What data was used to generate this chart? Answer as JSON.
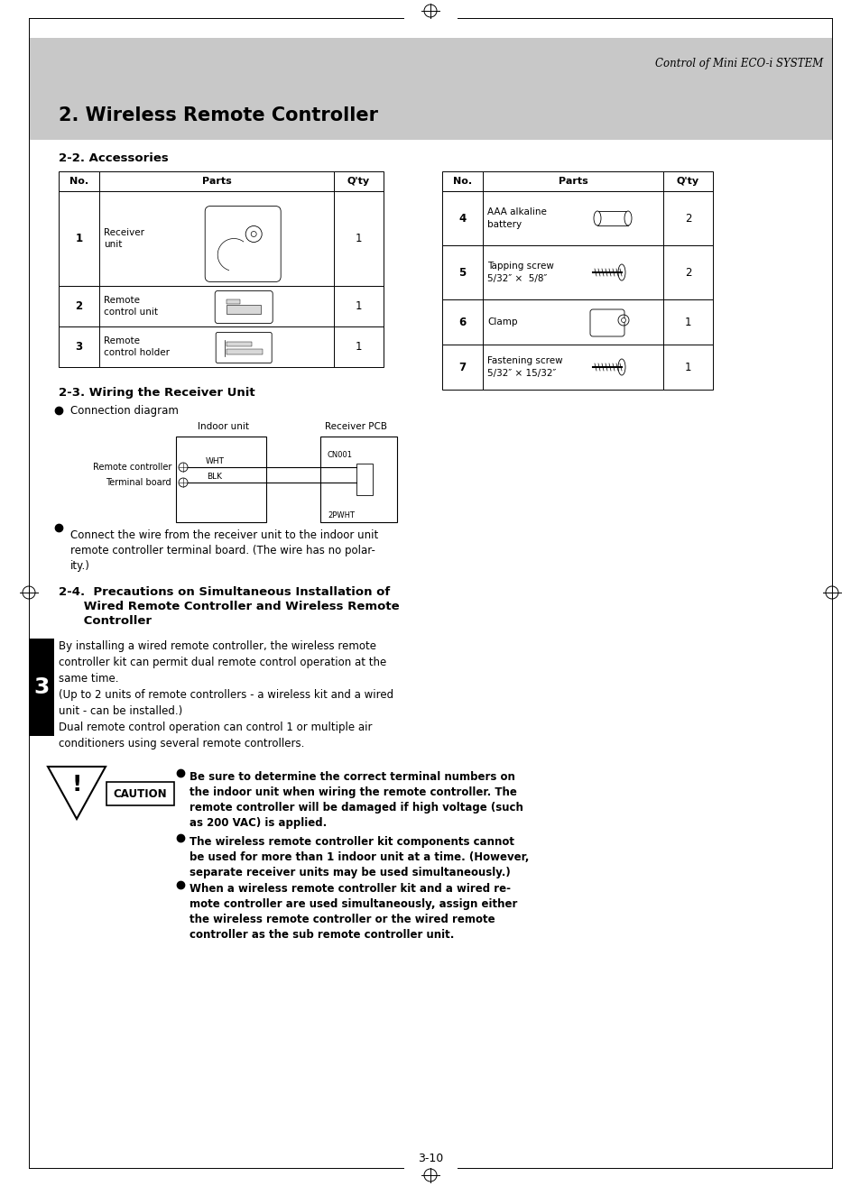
{
  "page_title": "Control of Mini ECO-i SYSTEM",
  "chapter_title": "2. Wireless Remote Controller",
  "section1_title": "2-2. Accessories",
  "section2_title": "2-3. Wiring the Receiver Unit",
  "section3_title_line1": "2-4.  Precautions on Simultaneous Installation of",
  "section3_title_line2": "      Wired Remote Controller and Wireless Remote",
  "section3_title_line3": "      Controller",
  "connection_label": "Connection diagram",
  "page_number": "3-10",
  "table1_headers": [
    "No.",
    "Parts",
    "Q'ty"
  ],
  "table1_rows": [
    {
      "no": "1",
      "parts": "Receiver\nunit",
      "qty": "1"
    },
    {
      "no": "2",
      "parts": "Remote\ncontrol unit",
      "qty": "1"
    },
    {
      "no": "3",
      "parts": "Remote\ncontrol holder",
      "qty": "1"
    }
  ],
  "table2_headers": [
    "No.",
    "Parts",
    "Q'ty"
  ],
  "table2_rows": [
    {
      "no": "4",
      "parts": "AAA alkaline\nbattery",
      "qty": "2"
    },
    {
      "no": "5",
      "parts": "Tapping screw\n5/32″ ×  5/8″",
      "qty": "2"
    },
    {
      "no": "6",
      "parts": "Clamp",
      "qty": "1"
    },
    {
      "no": "7",
      "parts": "Fastening screw\n5/32″ × 15/32″",
      "qty": "1"
    }
  ],
  "body_text": "By installing a wired remote controller, the wireless remote\ncontroller kit can permit dual remote control operation at the\nsame time.\n(Up to 2 units of remote controllers - a wireless kit and a wired\nunit - can be installed.)\nDual remote control operation can control 1 or multiple air\nconditioners using several remote controllers.",
  "caution_bullets": [
    "Be sure to determine the correct terminal numbers on\nthe indoor unit when wiring the remote controller. The\nremote controller will be damaged if high voltage (such\nas 200 VAC) is applied.",
    "The wireless remote controller kit components cannot\nbe used for more than 1 indoor unit at a time. (However,\nseparate receiver units may be used simultaneously.)",
    "When a wireless remote controller kit and a wired re-\nmote controller are used simultaneously, assign either\nthe wireless remote controller or the wired remote\ncontroller as the sub remote controller unit."
  ],
  "connect_text": "Connect the wire from the receiver unit to the indoor unit\nremote controller terminal board. (The wire has no polar-\nity.)",
  "sidebar_number": "3",
  "bg_color": "#ffffff",
  "gray_bg": "#c8c8c8"
}
